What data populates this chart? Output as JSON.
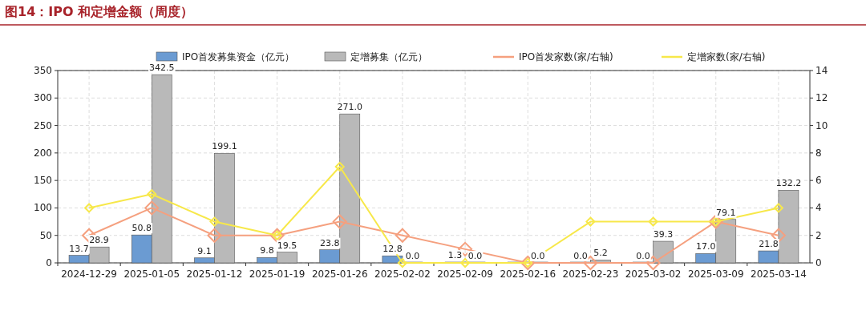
{
  "chart_data": {
    "type": "bar",
    "title": "图14：IPO 和定增金额（周度）",
    "categories": [
      "2024-12-29",
      "2025-01-05",
      "2025-01-12",
      "2025-01-19",
      "2025-01-26",
      "2025-02-02",
      "2025-02-09",
      "2025-02-16",
      "2025-02-23",
      "2025-03-02",
      "2025-03-09",
      "2025-03-14"
    ],
    "series": [
      {
        "name": "IPO首发募集资金（亿元）",
        "color": "#6b9bd2",
        "values": [
          13.7,
          50.8,
          9.1,
          9.8,
          23.8,
          12.8,
          1.3,
          0,
          0,
          0,
          17.0,
          21.8
        ],
        "value_labels": [
          "13.7",
          "50.8",
          "9.1",
          "9.8",
          "23.8",
          "12.8",
          "1.3",
          null,
          "0.0",
          "0.0",
          "17.0",
          "21.8"
        ]
      },
      {
        "name": "定增募集（亿元）",
        "color": "#b9b9b9",
        "values": [
          28.9,
          342.5,
          199.1,
          19.5,
          271.0,
          0,
          0,
          0,
          5.2,
          39.3,
          79.1,
          132.2
        ],
        "value_labels": [
          "28.9",
          "342.5",
          "199.1",
          "19.5",
          "271.0",
          "0.0",
          "0.0",
          "0.0",
          "5.2",
          "39.3",
          "79.1",
          "132.2"
        ]
      },
      {
        "name": "IPO首发家数(家/右轴)",
        "type": "line",
        "axis": "y2",
        "color": "#f5a07f",
        "values": [
          2,
          4,
          2,
          2,
          3,
          2,
          1,
          0,
          0,
          0,
          3,
          2
        ]
      },
      {
        "name": "定增家数(家/右轴)",
        "type": "line",
        "axis": "y2",
        "color": "#f7e84a",
        "values": [
          4,
          5,
          3,
          2,
          7,
          0,
          0,
          0,
          3,
          3,
          3,
          4
        ]
      }
    ],
    "ylim": [
      0,
      350
    ],
    "yticks": [
      0,
      50,
      100,
      150,
      200,
      250,
      300,
      350
    ],
    "y2lim": [
      0,
      14
    ],
    "y2ticks": [
      0,
      2,
      4,
      6,
      8,
      10,
      12,
      14
    ],
    "grid": true,
    "legend": "top",
    "marker": "diamond",
    "line_style": "solid"
  }
}
